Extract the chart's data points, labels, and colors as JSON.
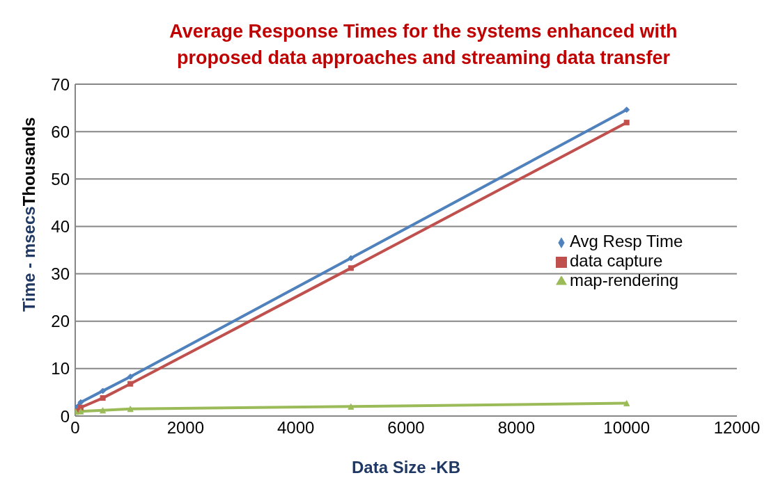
{
  "chart_data": {
    "type": "line",
    "title": "Average Response Times for the systems enhanced with proposed data approaches and streaming data transfer",
    "xlabel": "Data Size -KB",
    "ylabel": "Time - msecs",
    "annotations": [
      "Thousands"
    ],
    "x": [
      10,
      100,
      500,
      1000,
      5000,
      10000
    ],
    "series": [
      {
        "name": "Avg Resp Time",
        "color": "#4f81bd",
        "marker": "diamond",
        "values": [
          1.8,
          2.9,
          5.3,
          8.3,
          33.3,
          64.6
        ]
      },
      {
        "name": "data capture",
        "color": "#c0504d",
        "marker": "square",
        "values": [
          1.0,
          1.8,
          3.8,
          6.8,
          31.2,
          61.9
        ]
      },
      {
        "name": "map-rendering",
        "color": "#9bbb59",
        "marker": "triangle",
        "values": [
          0.9,
          1.0,
          1.2,
          1.5,
          2.0,
          2.7
        ]
      }
    ],
    "xlim": [
      0,
      12000
    ],
    "xticks": [
      0,
      2000,
      4000,
      6000,
      8000,
      10000,
      12000
    ],
    "ylim": [
      0,
      70
    ],
    "yticks": [
      0,
      10,
      20,
      30,
      40,
      50,
      60,
      70
    ],
    "grid": "y",
    "legend": "right",
    "line_style": "solid"
  }
}
